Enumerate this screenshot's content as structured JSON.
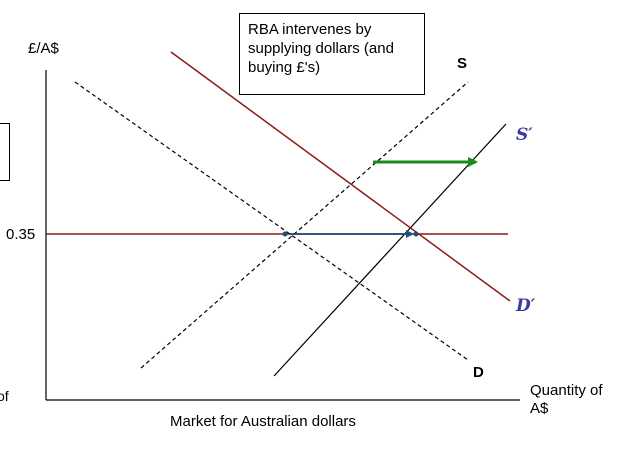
{
  "diagram": {
    "y_axis_label": "£/A$",
    "x_axis_label_line1": "Quantity of",
    "x_axis_label_line2": "A$",
    "caption": "Market for Australian dollars",
    "price_tick_label": "0.35",
    "annotation_text": "RBA intervenes by\nsupplying dollars (and\nbuying £'s)",
    "curve_labels": {
      "supply": "S",
      "demand": "D",
      "new_supply": "S′",
      "new_demand": "D′"
    },
    "left_fragment_text": "of",
    "colors": {
      "axis": "#000000",
      "supply": "#000000",
      "demand": "#000000",
      "new_supply": "#000000",
      "new_demand": "#8b1a1a",
      "price_line": "#8b1a1a",
      "intervention_arrow": "#1f4e79",
      "shift_arrow": "#1a8a1a",
      "prime_label": "#3a3aa0"
    }
  }
}
